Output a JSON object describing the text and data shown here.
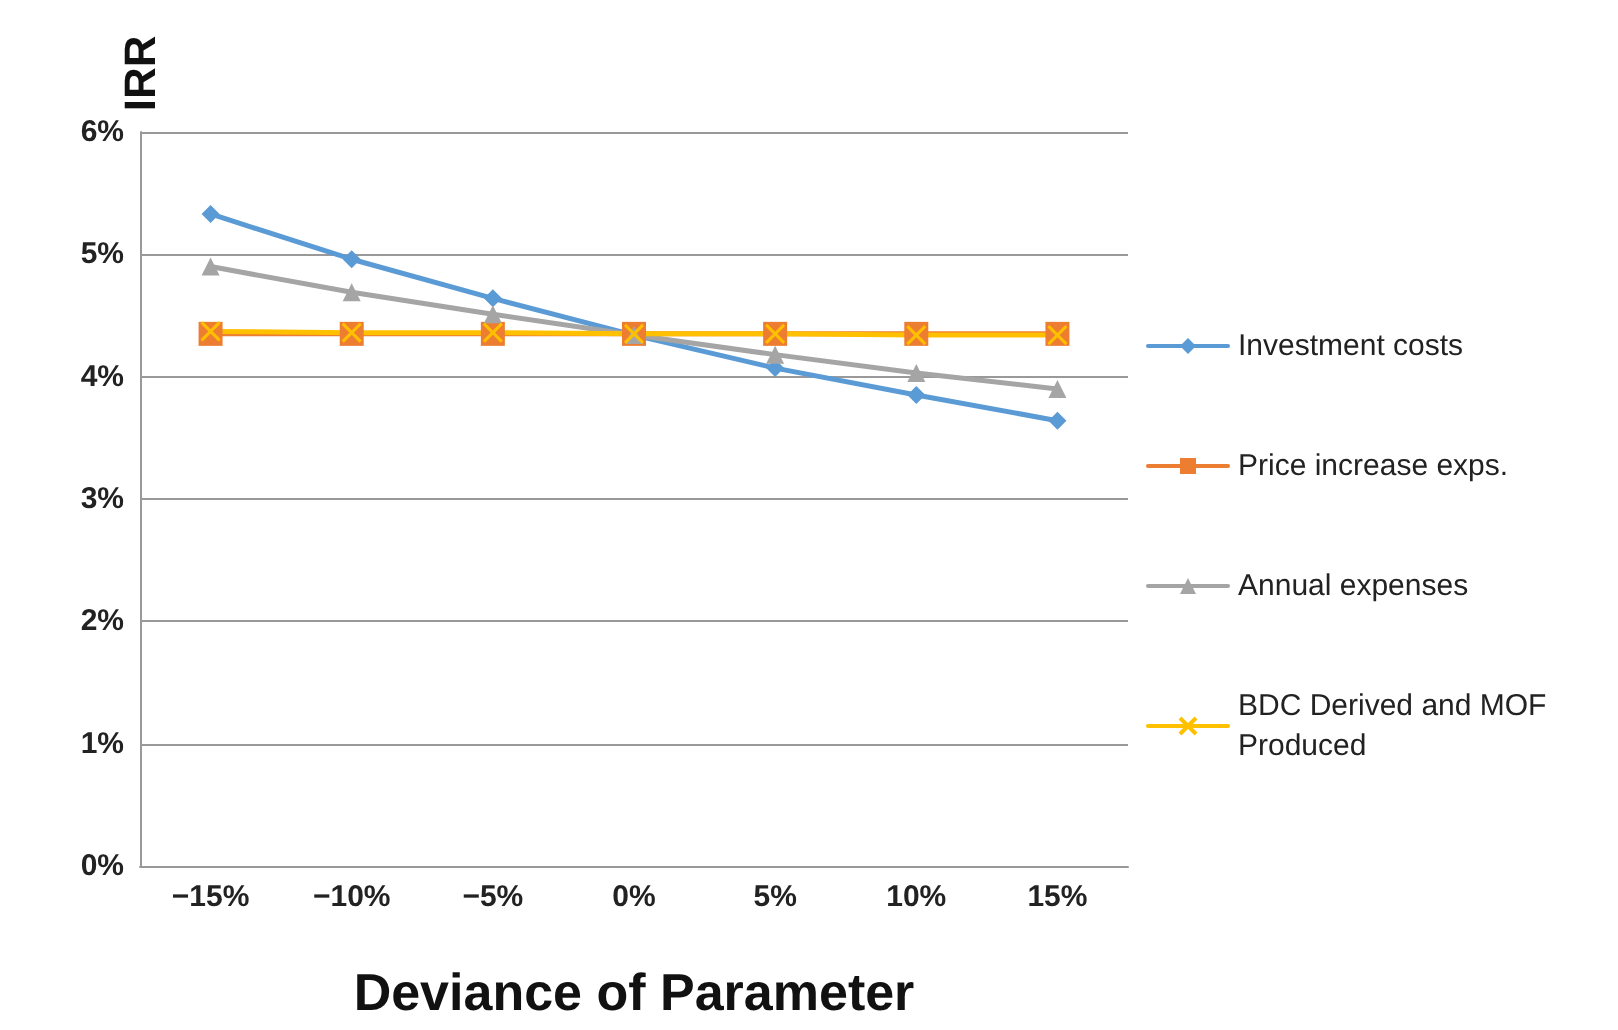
{
  "chart_data": {
    "type": "line",
    "ylabel": "IRR",
    "xlabel": "Deviance of Parameter",
    "categories": [
      "−15%",
      "−10%",
      "−5%",
      "0%",
      "5%",
      "10%",
      "15%"
    ],
    "series": [
      {
        "name": "Investment costs",
        "color": "#5b9bd5",
        "marker": "diamond",
        "values": [
          5.33,
          4.96,
          4.64,
          4.34,
          4.07,
          3.85,
          3.64
        ]
      },
      {
        "name": "Price increase exps.",
        "color": "#ed7d31",
        "marker": "square",
        "values": [
          4.35,
          4.35,
          4.35,
          4.35,
          4.35,
          4.35,
          4.35
        ]
      },
      {
        "name": "Annual expenses",
        "color": "#a5a5a5",
        "marker": "triangle",
        "values": [
          4.9,
          4.69,
          4.51,
          4.34,
          4.18,
          4.03,
          3.9
        ]
      },
      {
        "name": "BDC Derived and MOF Produced",
        "color": "#ffc000",
        "marker": "cross",
        "values": [
          4.37,
          4.36,
          4.36,
          4.35,
          4.35,
          4.34,
          4.34
        ]
      }
    ],
    "ylim": [
      0,
      6
    ],
    "yticks": [
      {
        "value": 0,
        "label": "0%"
      },
      {
        "value": 1,
        "label": "1%"
      },
      {
        "value": 2,
        "label": "2%"
      },
      {
        "value": 3,
        "label": "3%"
      },
      {
        "value": 4,
        "label": "4%"
      },
      {
        "value": 5,
        "label": "5%"
      },
      {
        "value": 6,
        "label": "6%"
      }
    ],
    "grid": "y",
    "legend": "right",
    "line_style": "solid"
  }
}
